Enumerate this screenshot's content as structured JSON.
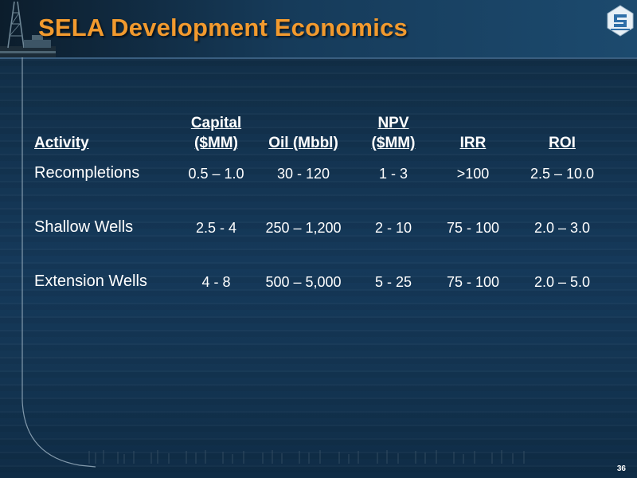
{
  "slide": {
    "title": "SELA Development Economics",
    "page_number": "36"
  },
  "table": {
    "headers": [
      {
        "line1": "",
        "line2": "Activity"
      },
      {
        "line1": "Capital",
        "line2": "($MM)"
      },
      {
        "line1": "",
        "line2": "Oil (Mbbl)"
      },
      {
        "line1": "NPV",
        "line2": "($MM)"
      },
      {
        "line1": "",
        "line2": "IRR"
      },
      {
        "line1": "",
        "line2": "ROI"
      }
    ],
    "rows": [
      {
        "activity": "Recompletions",
        "capital": "0.5 – 1.0",
        "oil": "30 - 120",
        "npv": "1 - 3",
        "irr": ">100",
        "roi": "2.5 – 10.0"
      },
      {
        "activity": "Shallow Wells",
        "capital": "2.5 - 4",
        "oil": "250 – 1,200",
        "npv": "2 - 10",
        "irr": "75 - 100",
        "roi": "2.0 – 3.0"
      },
      {
        "activity": "Extension Wells",
        "capital": "4 - 8",
        "oil": "500 – 5,000",
        "npv": "5 - 25",
        "irr": "75 - 100",
        "roi": "2.0 – 5.0"
      }
    ]
  },
  "colors": {
    "title": "#f29a2e",
    "text": "#ffffff",
    "background": "#15395a"
  },
  "icons": {
    "logo": "company-logo-icon",
    "rig": "drilling-rig-icon"
  }
}
